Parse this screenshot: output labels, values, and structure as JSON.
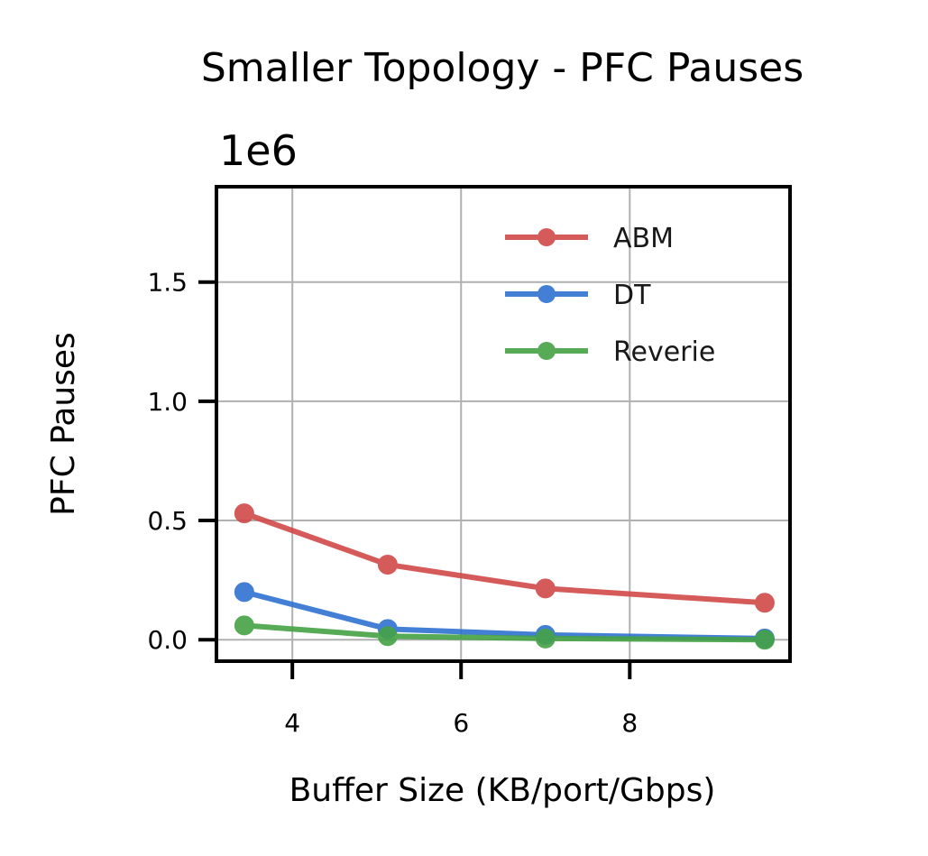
{
  "chart_data": {
    "type": "line",
    "title": "Smaller Topology - PFC Pauses",
    "xlabel": "Buffer Size (KB/port/Gbps)",
    "ylabel": "PFC Pauses",
    "y_offset_label": "1e6",
    "xlim": [
      3.1,
      9.9
    ],
    "ylim": [
      -0.09,
      1.9
    ],
    "x_ticks": [
      4,
      6,
      8
    ],
    "x_tick_labels": [
      "4",
      "6",
      "8"
    ],
    "y_ticks": [
      0.0,
      0.5,
      1.0,
      1.5
    ],
    "y_tick_labels": [
      "0.0",
      "0.5",
      "1.0",
      "1.5"
    ],
    "grid": true,
    "legend_position": "top-right",
    "x": [
      3.43,
      5.13,
      7.0,
      9.6
    ],
    "series": [
      {
        "name": "ABM",
        "color": "#d14a4a",
        "values": [
          0.53,
          0.315,
          0.215,
          0.155
        ]
      },
      {
        "name": "DT",
        "color": "#2f72d1",
        "values": [
          0.2,
          0.045,
          0.02,
          0.005
        ]
      },
      {
        "name": "Reverie",
        "color": "#45a245",
        "values": [
          0.06,
          0.015,
          0.005,
          0.0
        ]
      }
    ]
  }
}
